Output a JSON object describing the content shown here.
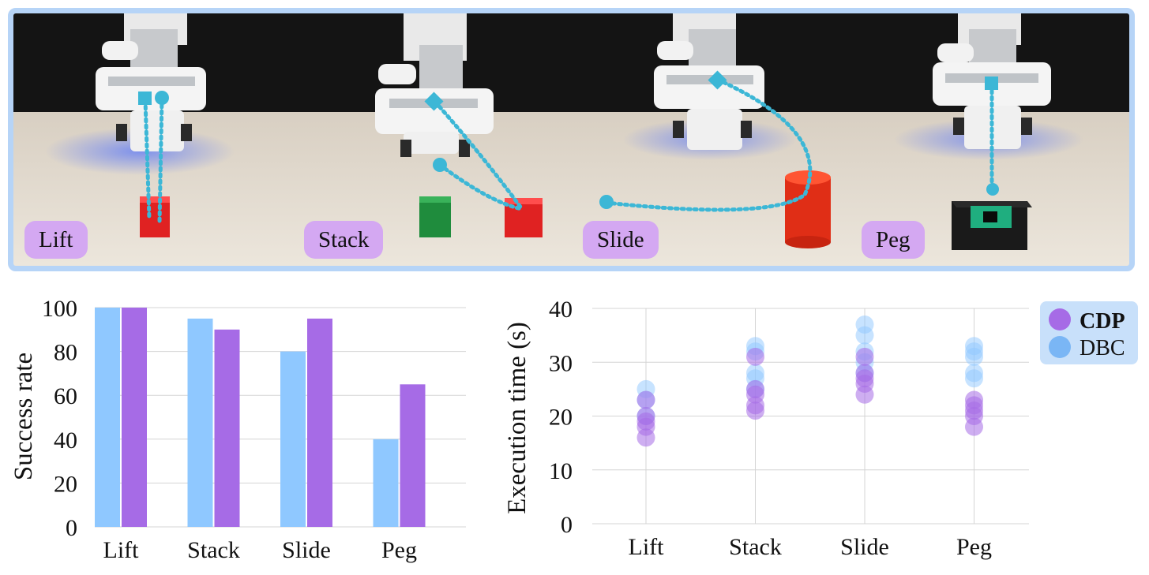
{
  "tasks": [
    {
      "label": "Lift"
    },
    {
      "label": "Stack"
    },
    {
      "label": "Slide"
    },
    {
      "label": "Peg"
    }
  ],
  "colors": {
    "cdp": "#a66be6",
    "dbc": "#8fc8ff",
    "trajectory": "#3cb7d6",
    "label_bg": "#d4a8f2",
    "frame": "#b6d4f7"
  },
  "chart_data": [
    {
      "type": "bar",
      "categories": [
        "Lift",
        "Stack",
        "Slide",
        "Peg"
      ],
      "series": [
        {
          "name": "DBC",
          "values": [
            100,
            95,
            80,
            40
          ]
        },
        {
          "name": "CDP",
          "values": [
            100,
            90,
            95,
            65
          ]
        }
      ],
      "ylabel": "Success rate",
      "ylim": [
        0,
        100
      ],
      "yticks": [
        0,
        20,
        40,
        60,
        80,
        100
      ],
      "grid": "horizontal"
    },
    {
      "type": "scatter",
      "categories": [
        "Lift",
        "Stack",
        "Slide",
        "Peg"
      ],
      "series": [
        {
          "name": "DBC",
          "points": [
            [
              0,
              25
            ],
            [
              0,
              23
            ],
            [
              0,
              20
            ],
            [
              1,
              33
            ],
            [
              1,
              32
            ],
            [
              1,
              28
            ],
            [
              1,
              27
            ],
            [
              1,
              25
            ],
            [
              2,
              37
            ],
            [
              2,
              35
            ],
            [
              2,
              32
            ],
            [
              2,
              30
            ],
            [
              2,
              28
            ],
            [
              3,
              33
            ],
            [
              3,
              32
            ],
            [
              3,
              31
            ],
            [
              3,
              28
            ],
            [
              3,
              27
            ]
          ]
        },
        {
          "name": "CDP",
          "points": [
            [
              0,
              23
            ],
            [
              0,
              20
            ],
            [
              0,
              19
            ],
            [
              0,
              18
            ],
            [
              0,
              16
            ],
            [
              1,
              31
            ],
            [
              1,
              25
            ],
            [
              1,
              24
            ],
            [
              1,
              22
            ],
            [
              1,
              21
            ],
            [
              2,
              31
            ],
            [
              2,
              28
            ],
            [
              2,
              27
            ],
            [
              2,
              26
            ],
            [
              2,
              24
            ],
            [
              3,
              23
            ],
            [
              3,
              22
            ],
            [
              3,
              21
            ],
            [
              3,
              20
            ],
            [
              3,
              18
            ]
          ]
        }
      ],
      "ylabel": "Execution time (s)",
      "ylim": [
        0,
        40
      ],
      "yticks": [
        0,
        10,
        20,
        30,
        40
      ],
      "grid": "both",
      "legend": {
        "placement": "top-right",
        "entries": [
          "CDP",
          "DBC"
        ]
      }
    }
  ]
}
